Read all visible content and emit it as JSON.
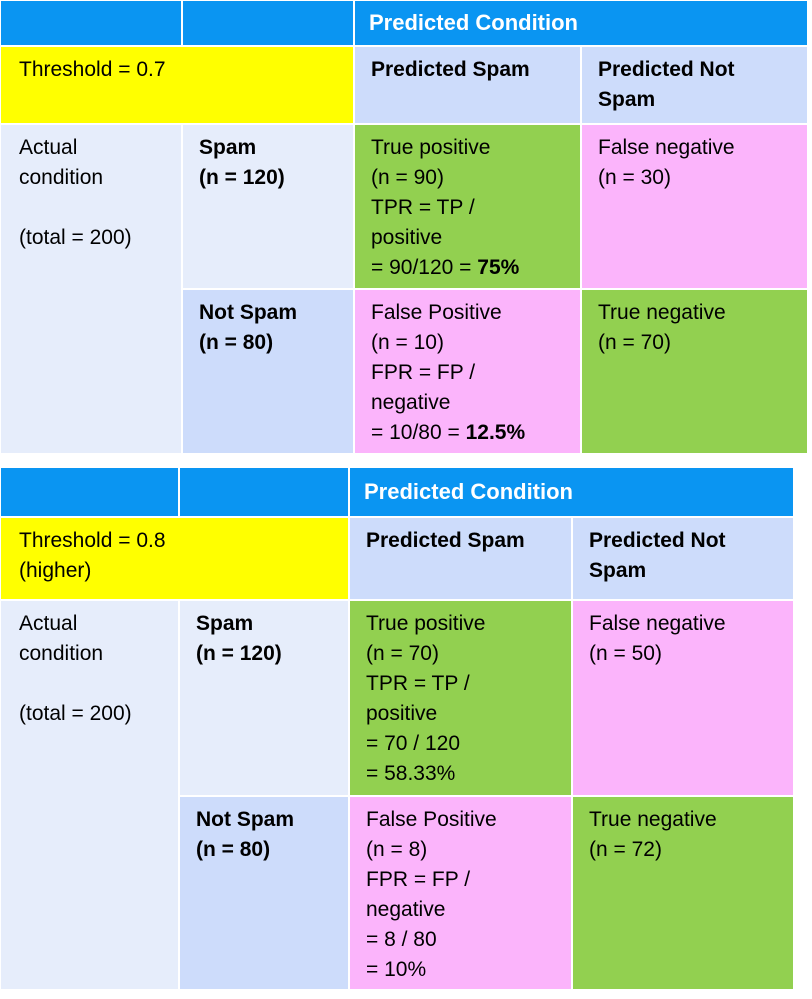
{
  "tables": [
    {
      "header": "Predicted Condition",
      "threshold": [
        "Threshold = 0.7"
      ],
      "col_spam": "Predicted Spam",
      "col_not_spam": [
        "Predicted Not",
        "Spam"
      ],
      "actual": [
        "Actual",
        "condition",
        "",
        "(total = 200)"
      ],
      "row_spam": [
        "Spam",
        "(n = 120)"
      ],
      "row_not_spam": [
        "Not Spam",
        "(n = 80)"
      ],
      "tp": [
        "True positive",
        "(n = 90)",
        "TPR = TP /",
        "positive"
      ],
      "tp_formula": "= 90/120 = ",
      "tp_result": "75%",
      "fn": [
        "False negative",
        "(n = 30)"
      ],
      "fp": [
        "False Positive",
        "(n = 10)",
        "FPR = FP /",
        "negative"
      ],
      "fp_formula": "= 10/80 = ",
      "fp_result": "12.5%",
      "tn": [
        "True negative",
        "(n = 70)"
      ]
    },
    {
      "header": "Predicted Condition",
      "threshold": [
        "Threshold = 0.8",
        "(higher)"
      ],
      "col_spam": "Predicted Spam",
      "col_not_spam": [
        "Predicted Not",
        "Spam"
      ],
      "actual": [
        "Actual",
        "condition",
        "",
        "(total = 200)"
      ],
      "row_spam": [
        "Spam",
        "(n = 120)"
      ],
      "row_not_spam": [
        "Not Spam",
        "(n = 80)"
      ],
      "tp": [
        "True positive",
        "(n = 70)",
        "TPR = TP /",
        "positive",
        "= 70 / 120",
        "= 58.33%"
      ],
      "fn": [
        "False negative",
        "(n = 50)"
      ],
      "fp": [
        "False Positive",
        "(n = 8)",
        "FPR = FP /",
        "negative",
        "= 8 / 80",
        "= 10%"
      ],
      "tn": [
        "True negative",
        "(n = 72)"
      ]
    }
  ],
  "colors": {
    "header": "#0a95f2",
    "threshold": "#ffff00",
    "column_header": "#cddcfb",
    "row_label": "#e6edfb",
    "correct": "#92d050",
    "error": "#fbb4fb"
  }
}
